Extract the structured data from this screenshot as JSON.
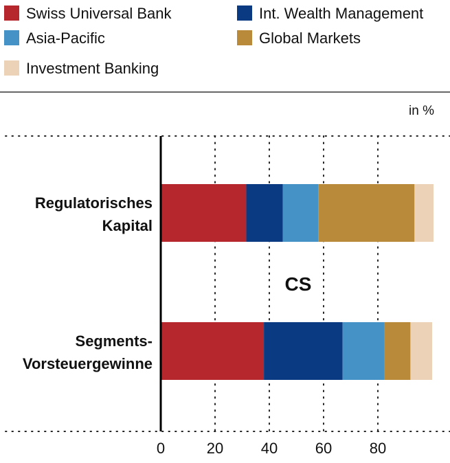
{
  "chart_data": {
    "type": "bar",
    "orientation": "horizontal",
    "stacked": true,
    "unit_label": "in %",
    "annotation": "CS",
    "categories": [
      "Regulatorisches Kapital",
      "Segments-Vorsteuergewinne"
    ],
    "category_label_lines": [
      [
        "Regulatorisches",
        "Kapital"
      ],
      [
        "Segments-",
        "Vorsteuergewinne"
      ]
    ],
    "series": [
      {
        "name": "Swiss Universal Bank",
        "color": "#b5272d",
        "values": [
          31.5,
          38
        ]
      },
      {
        "name": "Int. Wealth Management",
        "color": "#0a3a82",
        "values": [
          13.5,
          29
        ]
      },
      {
        "name": "Asia-Pacific",
        "color": "#4592c6",
        "values": [
          13,
          15.5
        ]
      },
      {
        "name": "Global Markets",
        "color": "#b88a3a",
        "values": [
          35.5,
          9.5
        ]
      },
      {
        "name": "Investment Banking",
        "color": "#ecd2b6",
        "values": [
          7,
          8
        ]
      }
    ],
    "xlim": [
      0,
      100
    ],
    "xticks": [
      0,
      20,
      40,
      60,
      80
    ],
    "grid": "vertical-dotted",
    "legend": "top"
  }
}
